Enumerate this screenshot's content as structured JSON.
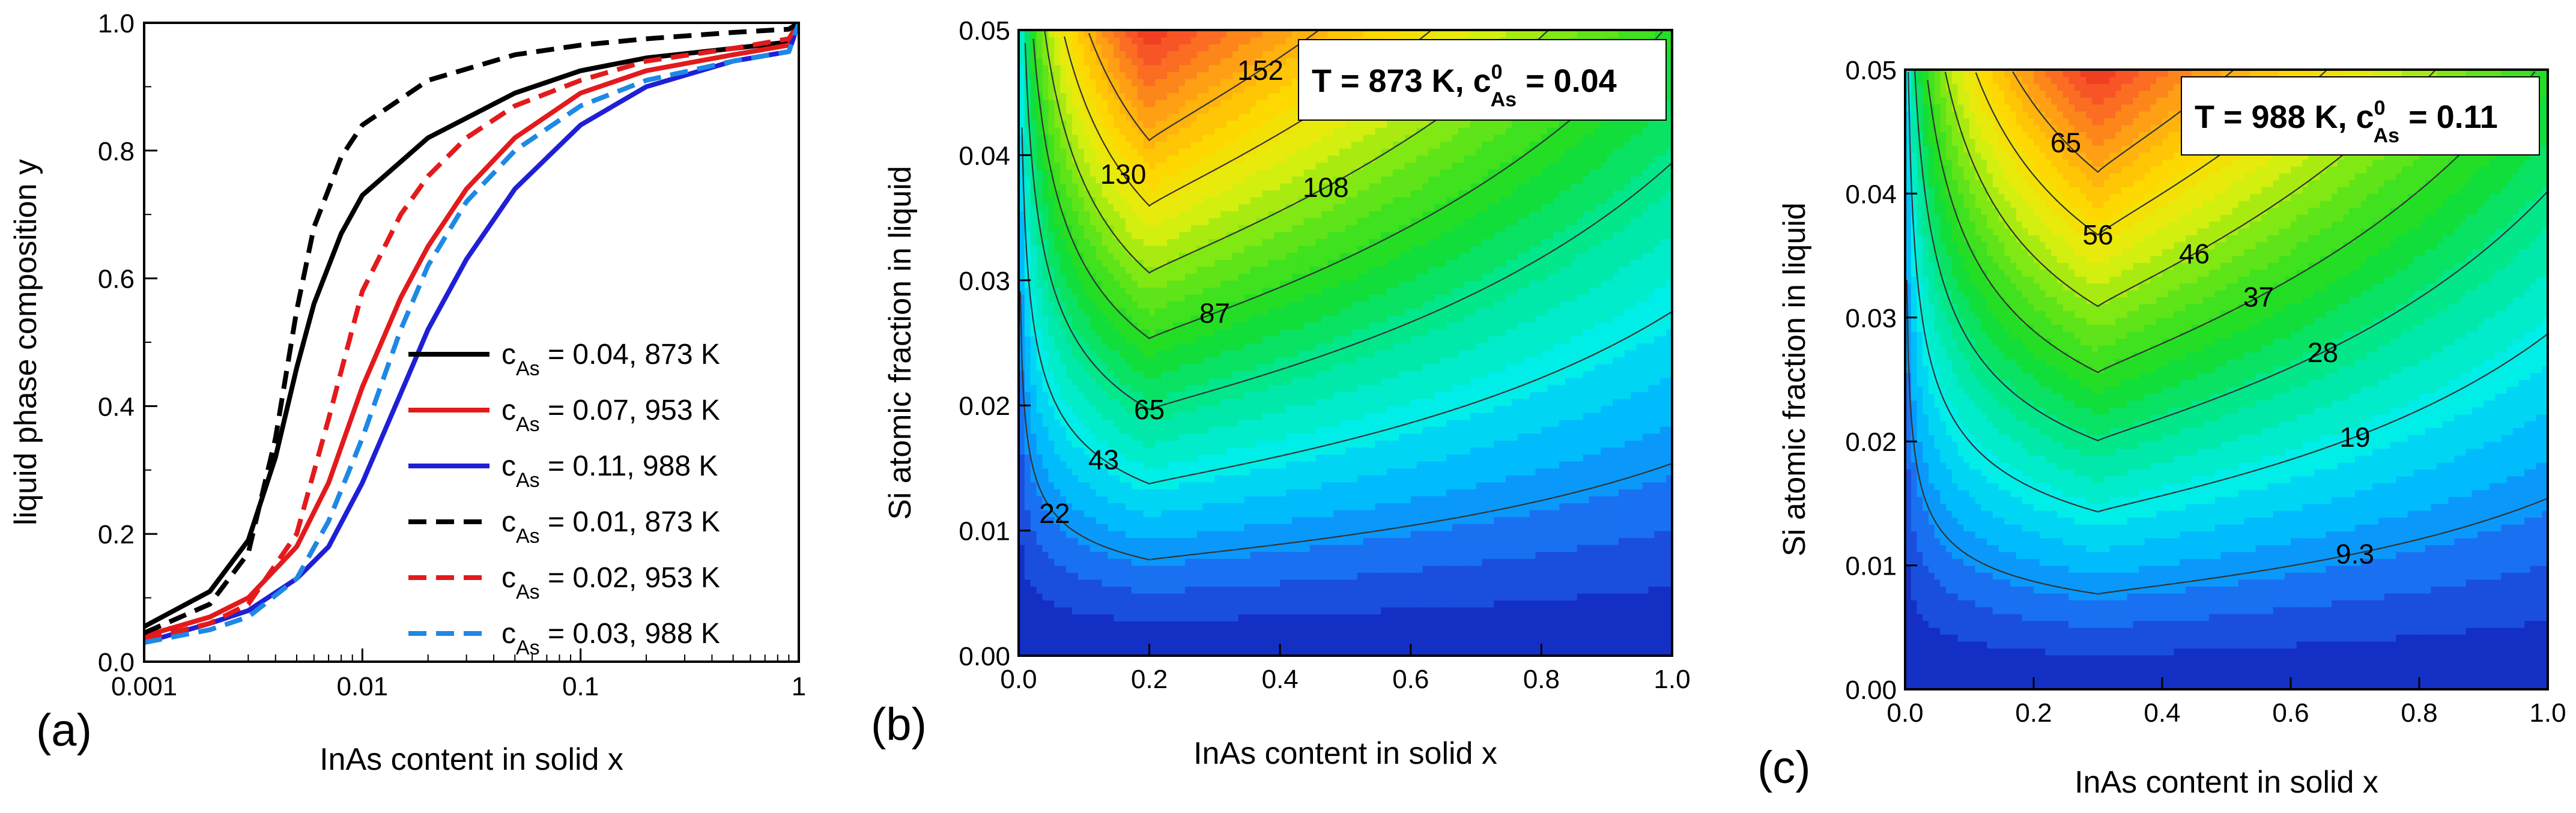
{
  "chart_data": [
    {
      "type": "line",
      "panel": "(a)",
      "xlabel": "InAs content in solid x",
      "ylabel": "liquid phase composition y",
      "xscale": "log",
      "xlim": [
        0.001,
        1
      ],
      "ylim": [
        0.0,
        1.0
      ],
      "x_ticks": [
        "0.001",
        "0.01",
        "0.1",
        "1"
      ],
      "y_ticks": [
        "0.0",
        "0.2",
        "0.4",
        "0.6",
        "0.8",
        "1.0"
      ],
      "legend_placement": "bottom-right",
      "series": [
        {
          "name": "cAs = 0.04, 873 K",
          "legend_prefix": "c",
          "legend_sub": "As",
          "legend_rest": " = 0.04, 873 K",
          "color": "#000000",
          "dash": "solid",
          "x": [
            0.001,
            0.002,
            0.003,
            0.004,
            0.005,
            0.006,
            0.008,
            0.01,
            0.02,
            0.05,
            0.1,
            0.2,
            0.5,
            0.9,
            1.0
          ],
          "y": [
            0.055,
            0.11,
            0.19,
            0.32,
            0.46,
            0.56,
            0.67,
            0.73,
            0.82,
            0.89,
            0.925,
            0.945,
            0.96,
            0.97,
            1.0
          ]
        },
        {
          "name": "cAs = 0.07, 953 K",
          "legend_prefix": "c",
          "legend_sub": "As",
          "legend_rest": " = 0.07, 953 K",
          "color": "#e31a1c",
          "dash": "solid",
          "x": [
            0.001,
            0.002,
            0.003,
            0.005,
            0.007,
            0.01,
            0.015,
            0.02,
            0.03,
            0.05,
            0.1,
            0.2,
            0.5,
            0.9,
            1.0
          ],
          "y": [
            0.04,
            0.07,
            0.1,
            0.18,
            0.28,
            0.43,
            0.57,
            0.65,
            0.74,
            0.82,
            0.89,
            0.925,
            0.95,
            0.965,
            1.0
          ]
        },
        {
          "name": "cAs = 0.11, 988 K",
          "legend_prefix": "c",
          "legend_sub": "As",
          "legend_rest": " = 0.11, 988 K",
          "color": "#1f1fd6",
          "dash": "solid",
          "x": [
            0.001,
            0.002,
            0.003,
            0.005,
            0.007,
            0.01,
            0.015,
            0.02,
            0.03,
            0.05,
            0.1,
            0.2,
            0.5,
            0.9,
            1.0
          ],
          "y": [
            0.03,
            0.06,
            0.08,
            0.13,
            0.18,
            0.28,
            0.42,
            0.52,
            0.63,
            0.74,
            0.84,
            0.9,
            0.94,
            0.955,
            1.0
          ]
        },
        {
          "name": "cAs = 0.01, 873 K",
          "legend_prefix": "c",
          "legend_sub": "As",
          "legend_rest": " = 0.01, 873 K",
          "color": "#000000",
          "dash": "dash",
          "x": [
            0.001,
            0.002,
            0.003,
            0.004,
            0.005,
            0.006,
            0.008,
            0.01,
            0.02,
            0.05,
            0.1,
            0.2,
            0.5,
            0.9,
            1.0
          ],
          "y": [
            0.045,
            0.09,
            0.17,
            0.35,
            0.55,
            0.68,
            0.79,
            0.84,
            0.91,
            0.95,
            0.965,
            0.975,
            0.985,
            0.99,
            1.0
          ]
        },
        {
          "name": "cAs = 0.02, 953 K",
          "legend_prefix": "c",
          "legend_sub": "As",
          "legend_rest": " = 0.02, 953 K",
          "color": "#e31a1c",
          "dash": "dash",
          "x": [
            0.001,
            0.002,
            0.003,
            0.005,
            0.007,
            0.01,
            0.015,
            0.02,
            0.03,
            0.05,
            0.1,
            0.2,
            0.5,
            0.9,
            1.0
          ],
          "y": [
            0.035,
            0.06,
            0.09,
            0.2,
            0.38,
            0.58,
            0.7,
            0.76,
            0.82,
            0.87,
            0.91,
            0.94,
            0.96,
            0.975,
            1.0
          ]
        },
        {
          "name": "cAs = 0.03, 988 K",
          "legend_prefix": "c",
          "legend_sub": "As",
          "legend_rest": " = 0.03, 988 K",
          "color": "#1e88e5",
          "dash": "dash",
          "x": [
            0.001,
            0.002,
            0.003,
            0.005,
            0.007,
            0.01,
            0.015,
            0.02,
            0.03,
            0.05,
            0.1,
            0.2,
            0.5,
            0.9,
            1.0
          ],
          "y": [
            0.03,
            0.05,
            0.07,
            0.13,
            0.22,
            0.35,
            0.52,
            0.62,
            0.72,
            0.8,
            0.87,
            0.91,
            0.94,
            0.955,
            1.0
          ]
        }
      ]
    },
    {
      "type": "heatmap",
      "panel": "(b)",
      "xlabel": "InAs content in solid x",
      "ylabel": "Si atomic fraction in liquid",
      "xlim": [
        0.0,
        1.0
      ],
      "ylim": [
        0.0,
        0.05
      ],
      "x_ticks": [
        "0.0",
        "0.2",
        "0.4",
        "0.6",
        "0.8",
        "1.0"
      ],
      "y_ticks": [
        "0.00",
        "0.01",
        "0.02",
        "0.03",
        "0.04",
        "0.05"
      ],
      "annotation": {
        "prefix": "T = 873 K, c",
        "sup": "0",
        "sub": "As",
        "rest": " = 0.04"
      },
      "x_opt": 0.2,
      "vmax": 190,
      "contours": [
        {
          "level": 22,
          "label": "22",
          "label_x": 0.055
        },
        {
          "level": 43,
          "label": "43",
          "label_x": 0.13
        },
        {
          "level": 65,
          "label": "65",
          "label_x": 0.2
        },
        {
          "level": 87,
          "label": "87",
          "label_x": 0.3
        },
        {
          "level": 108,
          "label": "108",
          "label_x": 0.47
        },
        {
          "level": 130,
          "label": "130",
          "label_x": 0.16
        },
        {
          "level": 152,
          "label": "152",
          "label_x": 0.37
        }
      ]
    },
    {
      "type": "heatmap",
      "panel": "(c)",
      "xlabel": "InAs content in solid x",
      "ylabel": "Si atomic fraction in liquid",
      "xlim": [
        0.0,
        1.0
      ],
      "ylim": [
        0.0,
        0.05
      ],
      "x_ticks": [
        "0.0",
        "0.2",
        "0.4",
        "0.6",
        "0.8",
        "1.0"
      ],
      "y_ticks": [
        "0.00",
        "0.01",
        "0.02",
        "0.03",
        "0.04",
        "0.05"
      ],
      "annotation": {
        "prefix": "T = 988 K, c",
        "sup": "0",
        "sub": "As",
        "rest": " = 0.11"
      },
      "x_opt": 0.3,
      "vmax": 80,
      "contours": [
        {
          "level": 9.3,
          "label": "9.3",
          "label_x": 0.7
        },
        {
          "level": 19,
          "label": "19",
          "label_x": 0.7
        },
        {
          "level": 28,
          "label": "28",
          "label_x": 0.65
        },
        {
          "level": 37,
          "label": "37",
          "label_x": 0.55
        },
        {
          "level": 46,
          "label": "46",
          "label_x": 0.45
        },
        {
          "level": 56,
          "label": "56",
          "label_x": 0.3
        },
        {
          "level": 65,
          "label": "65",
          "label_x": 0.25
        }
      ]
    }
  ]
}
